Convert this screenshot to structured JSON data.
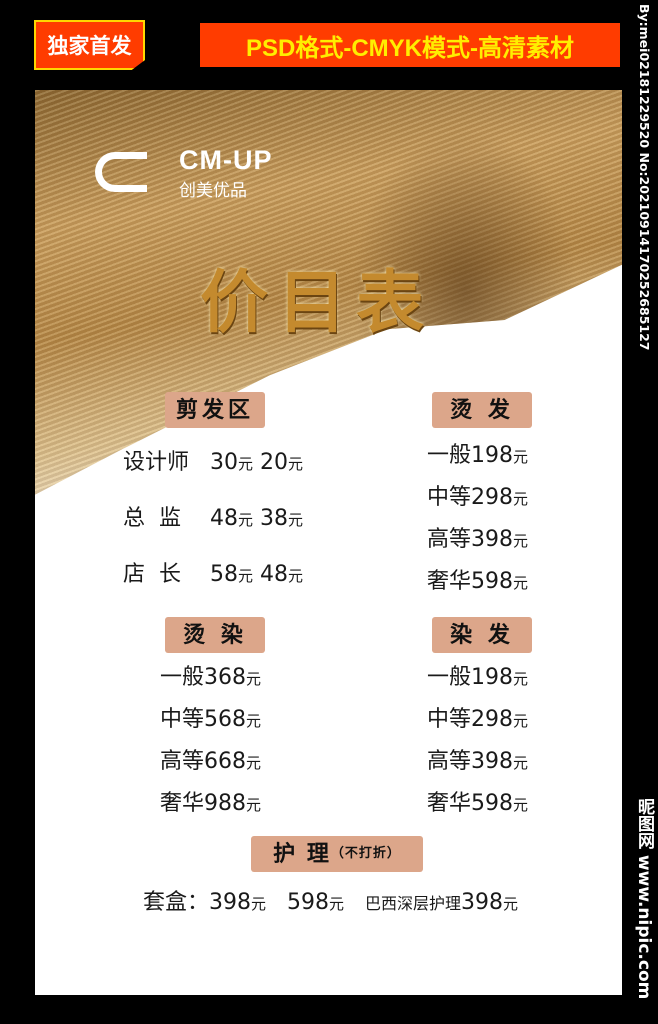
{
  "top": {
    "badge": "独家首发",
    "banner": "PSD格式-CMYK模式-高清素材"
  },
  "watermark": {
    "side": "By:mei02181229520 No:20210914170252685127",
    "site": "昵图网 www.nipic.com"
  },
  "logo": {
    "name": "CM-UP",
    "cn": "创美优品"
  },
  "title": "价目表",
  "colors": {
    "tag": "#dca68a",
    "banner": "#ff3c00",
    "banner_text": "#ffee00",
    "title": "#c48a2e"
  },
  "sections": {
    "cut": {
      "title": "剪发区",
      "rows": [
        {
          "label": "设计师",
          "p1": "30",
          "p2": "20"
        },
        {
          "label": "总  监",
          "p1": "48",
          "p2": "38"
        },
        {
          "label": "店  长",
          "p1": "58",
          "p2": "48"
        }
      ]
    },
    "perm": {
      "title": "烫 发",
      "rows": [
        {
          "label": "一般",
          "price": "198"
        },
        {
          "label": "中等",
          "price": "298"
        },
        {
          "label": "高等",
          "price": "398"
        },
        {
          "label": "奢华",
          "price": "598"
        }
      ]
    },
    "permdye": {
      "title": "烫 染",
      "rows": [
        {
          "label": "一般",
          "price": "368"
        },
        {
          "label": "中等",
          "price": "568"
        },
        {
          "label": "高等",
          "price": "668"
        },
        {
          "label": "奢华",
          "price": "988"
        }
      ]
    },
    "dye": {
      "title": "染 发",
      "rows": [
        {
          "label": "一般",
          "price": "198"
        },
        {
          "label": "中等",
          "price": "298"
        },
        {
          "label": "高等",
          "price": "398"
        },
        {
          "label": "奢华",
          "price": "598"
        }
      ]
    },
    "care": {
      "title": "护 理",
      "note": "（不打折）",
      "box_label": "套盒：",
      "p1": "398",
      "p2": "598",
      "brazil_label": "巴西深层护理",
      "p3": "398"
    }
  },
  "unit": "元"
}
